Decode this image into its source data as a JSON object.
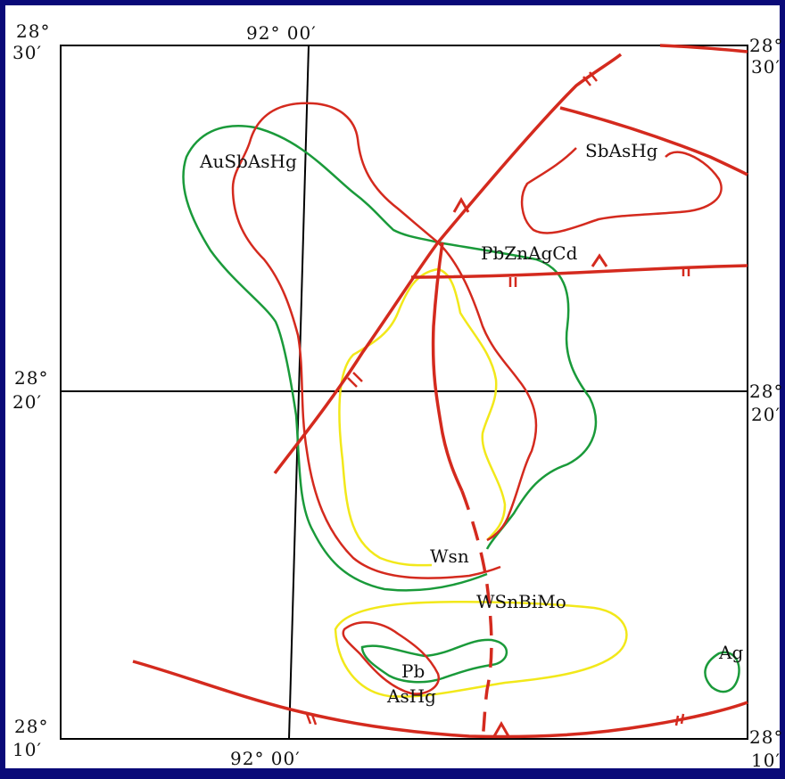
{
  "coords": {
    "top_left_lat_deg": "28°",
    "top_left_lat_min": "30′",
    "top_lon": "92°  00′",
    "top_right_lat_deg": "28°",
    "top_right_lat_min": "30′",
    "mid_left_lat_deg": "28°",
    "mid_left_lat_min": "20′",
    "mid_right_lat_deg": "28°",
    "mid_right_lat_min": "20′",
    "bottom_left_lat_deg": "28°",
    "bottom_left_lat_min": "10′",
    "bottom_lon": "92°  00′",
    "bottom_right_lat_deg": "28°",
    "bottom_right_lat_min": "10′"
  },
  "anomalies": {
    "ausbashg": "AuSbAsHg",
    "sbashg": "SbAsHg",
    "pbznagcd": "PbZnAgCd",
    "wsn": "Wsn",
    "wsnbimo": "WSnBiMo",
    "pb": "Pb",
    "ashg": "AsHg",
    "ag": "Ag"
  },
  "colors": {
    "fault": "#d42a1e",
    "green_contour": "#1a9a3a",
    "yellow_contour": "#f2e81a",
    "background": "#0a0a78"
  }
}
